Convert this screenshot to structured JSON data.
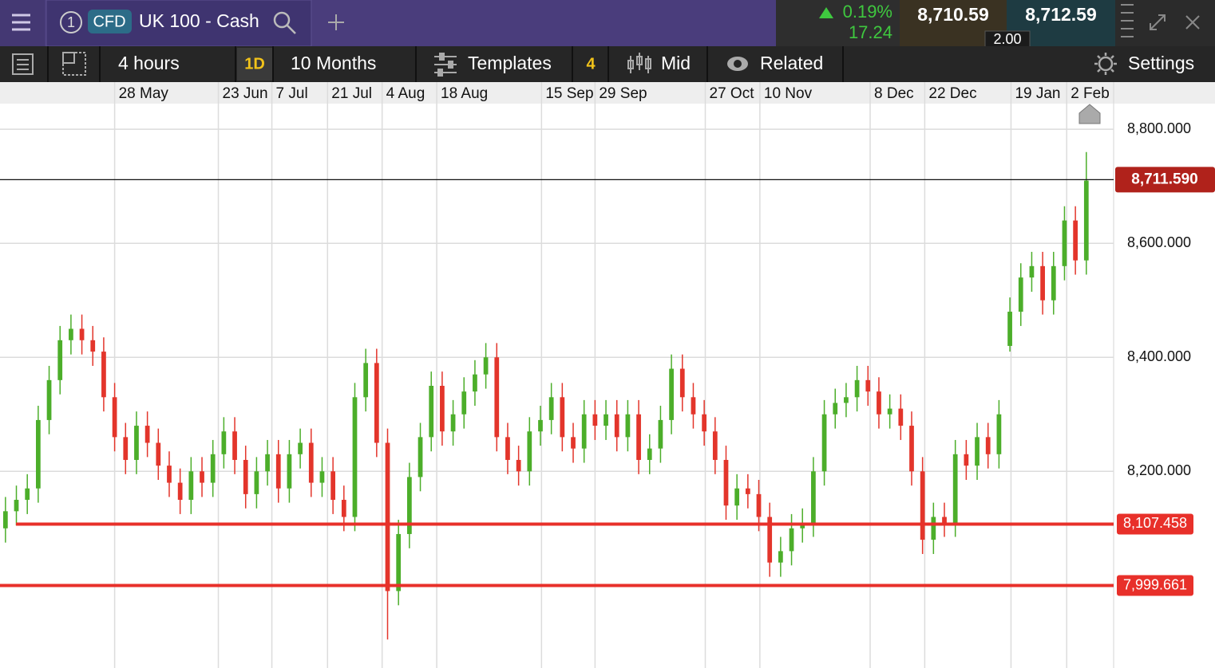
{
  "header": {
    "tab_number": "1",
    "badge": "CFD",
    "instrument": "UK 100 - Cash",
    "change_percent": "0.19%",
    "change_points": "17.24",
    "sell": "8,710.59",
    "spread": "2.00",
    "buy": "8,712.59"
  },
  "toolbar": {
    "interval": "4 hours",
    "period_button": "1D",
    "range": "10 Months",
    "templates": "Templates",
    "templates_count": "4",
    "price_type": "Mid",
    "related": "Related",
    "settings": "Settings"
  },
  "chart_data": {
    "type": "candlestick",
    "grid": true,
    "up_color": "#4cae2a",
    "down_color": "#e3352b",
    "level_color": "#e8302a",
    "xlim": [
      -0.5,
      101.5
    ],
    "ylim": [
      7855,
      8845
    ],
    "xticks": [
      {
        "value": 10,
        "label": "28 May"
      },
      {
        "value": 19.5,
        "label": "23 Jun"
      },
      {
        "value": 24.4,
        "label": "7 Jul"
      },
      {
        "value": 29.5,
        "label": "21 Jul"
      },
      {
        "value": 34.5,
        "label": "4 Aug"
      },
      {
        "value": 39.5,
        "label": "18 Aug"
      },
      {
        "value": 49.1,
        "label": "15 Sep"
      },
      {
        "value": 54,
        "label": "29 Sep"
      },
      {
        "value": 64.1,
        "label": "27 Oct"
      },
      {
        "value": 69.1,
        "label": "10 Nov"
      },
      {
        "value": 79.2,
        "label": "8 Dec"
      },
      {
        "value": 84.2,
        "label": "22 Dec"
      },
      {
        "value": 92.1,
        "label": "19 Jan"
      },
      {
        "value": 97.2,
        "label": "2 Feb"
      }
    ],
    "yticks": [
      {
        "value": 8200,
        "label": "8,200.000"
      },
      {
        "value": 8400,
        "label": "8,400.000"
      },
      {
        "value": 8600,
        "label": "8,600.000"
      },
      {
        "value": 8800,
        "label": "8,800.000"
      }
    ],
    "last_price": {
      "value": 8711.59,
      "label": "8,711.590"
    },
    "levels": [
      {
        "value": 8107.458,
        "label": "8,107.458"
      },
      {
        "value": 7999.661,
        "label": "7,999.661"
      }
    ],
    "open": [
      8100,
      8130,
      8150,
      8170,
      8290,
      8360,
      8430,
      8450,
      8430,
      8410,
      8330,
      8260,
      8220,
      8280,
      8250,
      8210,
      8180,
      8150,
      8200,
      8180,
      8230,
      8270,
      8220,
      8160,
      8200,
      8230,
      8170,
      8230,
      8250,
      8180,
      8200,
      8150,
      8120,
      8330,
      8390,
      8250,
      7990,
      8090,
      8190,
      8260,
      8350,
      8270,
      8300,
      8340,
      8370,
      8400,
      8260,
      8220,
      8200,
      8270,
      8290,
      8330,
      8260,
      8240,
      8300,
      8280,
      8300,
      8260,
      8300,
      8220,
      8240,
      8290,
      8380,
      8330,
      8300,
      8270,
      8220,
      8140,
      8170,
      8160,
      8120,
      8040,
      8060,
      8100,
      8110,
      8200,
      8300,
      8320,
      8330,
      8360,
      8340,
      8300,
      8310,
      8280,
      8200,
      8080,
      8120,
      8110,
      8230,
      8210,
      8260,
      8230,
      8420,
      8480,
      8540,
      8560,
      8500,
      8560,
      8640,
      8570
    ],
    "high": [
      8155,
      8175,
      8195,
      8315,
      8385,
      8455,
      8475,
      8475,
      8455,
      8435,
      8355,
      8285,
      8305,
      8305,
      8275,
      8235,
      8205,
      8225,
      8225,
      8255,
      8295,
      8295,
      8245,
      8225,
      8255,
      8255,
      8255,
      8275,
      8275,
      8225,
      8225,
      8175,
      8355,
      8415,
      8415,
      8275,
      8115,
      8215,
      8285,
      8375,
      8375,
      8325,
      8365,
      8395,
      8425,
      8425,
      8285,
      8245,
      8295,
      8315,
      8355,
      8355,
      8285,
      8325,
      8325,
      8325,
      8325,
      8325,
      8325,
      8265,
      8315,
      8405,
      8405,
      8355,
      8325,
      8295,
      8245,
      8195,
      8195,
      8185,
      8145,
      8085,
      8125,
      8135,
      8225,
      8325,
      8345,
      8355,
      8385,
      8385,
      8365,
      8335,
      8335,
      8305,
      8225,
      8145,
      8145,
      8255,
      8255,
      8285,
      8285,
      8325,
      8505,
      8565,
      8585,
      8585,
      8585,
      8665,
      8665,
      8760
    ],
    "low": [
      8075,
      8105,
      8125,
      8145,
      8265,
      8335,
      8405,
      8405,
      8385,
      8305,
      8235,
      8195,
      8195,
      8225,
      8185,
      8155,
      8125,
      8125,
      8155,
      8155,
      8205,
      8195,
      8135,
      8135,
      8175,
      8145,
      8145,
      8205,
      8155,
      8155,
      8125,
      8095,
      8095,
      8305,
      8225,
      7905,
      7965,
      8065,
      8165,
      8235,
      8245,
      8245,
      8275,
      8315,
      8345,
      8235,
      8195,
      8175,
      8175,
      8245,
      8265,
      8235,
      8215,
      8215,
      8255,
      8255,
      8235,
      8235,
      8195,
      8195,
      8215,
      8265,
      8305,
      8275,
      8245,
      8195,
      8115,
      8115,
      8135,
      8095,
      8015,
      8015,
      8035,
      8075,
      8085,
      8175,
      8275,
      8295,
      8305,
      8315,
      8275,
      8275,
      8255,
      8175,
      8055,
      8055,
      8085,
      8085,
      8185,
      8185,
      8205,
      8205,
      8410,
      8455,
      8515,
      8475,
      8475,
      8535,
      8545,
      8545
    ],
    "close": [
      8130,
      8150,
      8170,
      8290,
      8360,
      8430,
      8450,
      8430,
      8410,
      8330,
      8260,
      8220,
      8280,
      8250,
      8210,
      8180,
      8150,
      8200,
      8180,
      8230,
      8270,
      8220,
      8160,
      8200,
      8230,
      8170,
      8230,
      8250,
      8180,
      8200,
      8150,
      8120,
      8330,
      8390,
      8250,
      7990,
      8090,
      8190,
      8260,
      8350,
      8270,
      8300,
      8340,
      8370,
      8400,
      8260,
      8220,
      8200,
      8270,
      8290,
      8330,
      8260,
      8240,
      8300,
      8280,
      8300,
      8260,
      8300,
      8220,
      8240,
      8290,
      8380,
      8330,
      8300,
      8270,
      8220,
      8140,
      8170,
      8160,
      8120,
      8040,
      8060,
      8100,
      8110,
      8200,
      8300,
      8320,
      8330,
      8360,
      8340,
      8300,
      8310,
      8280,
      8200,
      8080,
      8120,
      8110,
      8230,
      8210,
      8260,
      8230,
      8300,
      8480,
      8540,
      8560,
      8500,
      8560,
      8640,
      8570,
      8710
    ]
  }
}
